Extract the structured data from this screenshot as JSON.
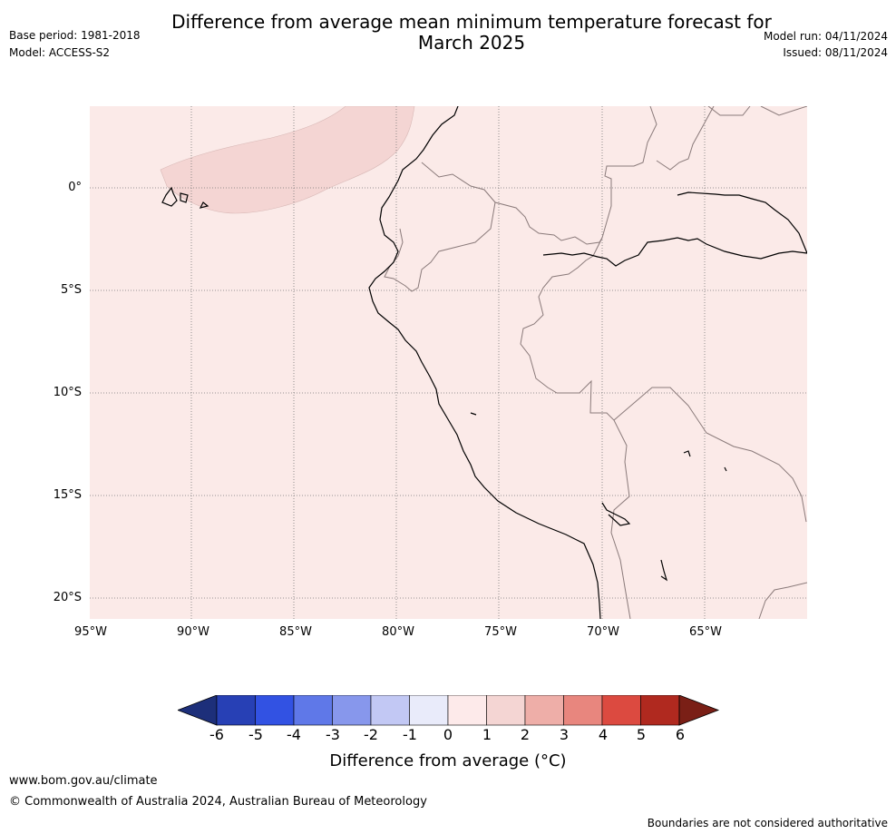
{
  "title": "Difference from average mean minimum temperature forecast for March 2025",
  "title_line1": "Difference from average mean minimum temperature forecast for",
  "title_line2": "March 2025",
  "base_period": "Base period: 1981-2018",
  "model": "Model: ACCESS-S2",
  "model_run": "Model run: 04/11/2024",
  "issued": "Issued: 08/11/2024",
  "map": {
    "lat_labels": [
      "0°",
      "5°S",
      "10°S",
      "15°S",
      "20°S"
    ],
    "lon_labels": [
      "95°W",
      "90°W",
      "85°W",
      "80°W",
      "75°W",
      "70°W",
      "65°W"
    ],
    "background_category": "0 to 1",
    "patch_category": "1 to 2",
    "colors": {
      "cat_0_1": "#fbeae8",
      "cat_1_2": "#f4d5d3",
      "country_border": "#8a7a7a",
      "coastline": "#000000"
    }
  },
  "colorbar": {
    "tick_labels": [
      "-6",
      "-5",
      "-4",
      "-3",
      "-2",
      "-1",
      "0",
      "1",
      "2",
      "3",
      "4",
      "5",
      "6"
    ],
    "colors": [
      "#1d2f7a",
      "#2740b5",
      "#3252e3",
      "#5f78e8",
      "#8797ec",
      "#c2c8f4",
      "#e9ebfa",
      "#fdeaea",
      "#f4d5d3",
      "#eeaea8",
      "#e8867e",
      "#dc4a40",
      "#b0291f",
      "#7a1f16"
    ],
    "label": "Difference from average (°C)"
  },
  "footer": {
    "website": "www.bom.gov.au/climate",
    "copyright": "© Commonwealth of Australia 2024, Australian Bureau of Meteorology",
    "disclaimer": "Boundaries are not considered authoritative"
  }
}
